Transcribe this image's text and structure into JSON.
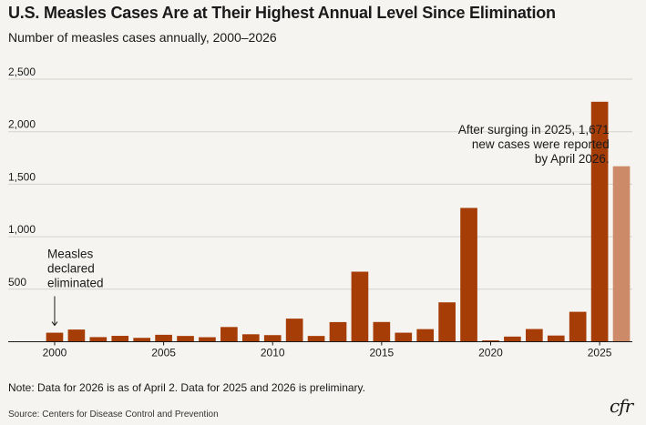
{
  "header": {
    "title": "U.S. Measles Cases Are at Their Highest Annual Level Since Elimination",
    "subtitle": "Number of measles cases annually, 2000–2026"
  },
  "footer": {
    "note": "Note: Data for 2026 is as of April 2. Data for 2025 and 2026 is preliminary.",
    "source": "Source: Centers for Disease Control and Prevention",
    "logo": "cfr"
  },
  "colors": {
    "bar": "#a63c06",
    "bar_preliminary": "#cd8a68",
    "background": "#f6f4f1",
    "grid": "#d5d1cc",
    "axis": "#1a1a1a"
  },
  "chart_data": {
    "type": "bar",
    "title": "U.S. Measles Cases Are at Their Highest Annual Level Since Elimination",
    "subtitle": "Number of measles cases annually, 2000–2026",
    "xlabel": "",
    "ylabel": "",
    "x": [
      2000,
      2001,
      2002,
      2003,
      2004,
      2005,
      2006,
      2007,
      2008,
      2009,
      2010,
      2011,
      2012,
      2013,
      2014,
      2015,
      2016,
      2017,
      2018,
      2019,
      2020,
      2021,
      2022,
      2023,
      2024,
      2025,
      2026
    ],
    "values": [
      86,
      116,
      44,
      56,
      37,
      66,
      55,
      43,
      140,
      71,
      63,
      220,
      55,
      187,
      667,
      188,
      86,
      120,
      375,
      1274,
      13,
      49,
      121,
      59,
      285,
      2285,
      1671
    ],
    "highlight_last": true,
    "ylim": [
      0,
      2500
    ],
    "yticks": [
      "500",
      "1,000",
      "1,500",
      "2,000",
      "2,500"
    ],
    "ytick_values": [
      500,
      1000,
      1500,
      2000,
      2500
    ],
    "xticks": [
      "2000",
      "2005",
      "2010",
      "2015",
      "2020",
      "2025"
    ],
    "xtick_values": [
      2000,
      2005,
      2010,
      2015,
      2020,
      2025
    ],
    "grid": true,
    "annotations": [
      {
        "lines": [
          "Measles",
          "declared",
          "eliminated"
        ],
        "year": 2000,
        "align": "left"
      },
      {
        "lines": [
          "After surging in 2025, 1,671",
          "new cases were reported",
          "by April 2026."
        ],
        "year": 2026,
        "align": "right"
      }
    ]
  }
}
